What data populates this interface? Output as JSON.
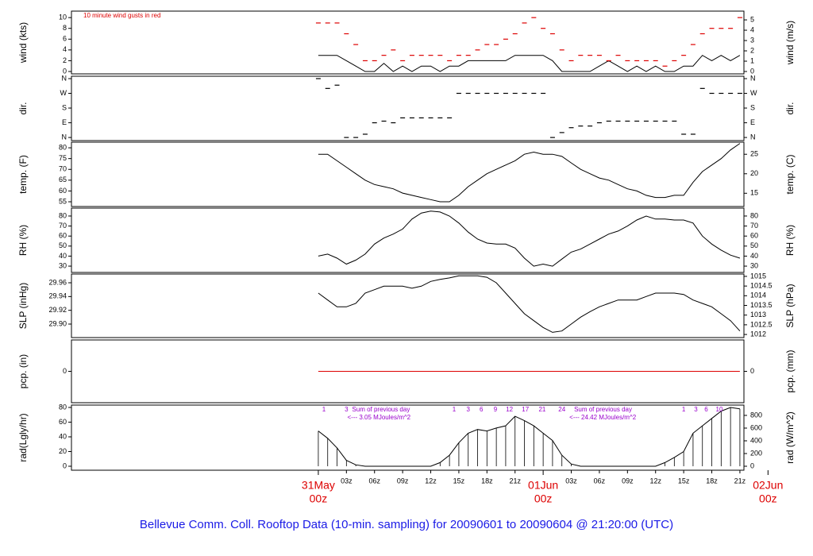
{
  "chart_data": {
    "type": "meteogram",
    "title": "Bellevue Comm. Coll. Rooftop Data (10-min. sampling) for 20090601  to  20090604 @ 21:20:00  (UTC)",
    "xlim": [
      -26.35,
      45.43
    ],
    "x": [
      0,
      1,
      2,
      3,
      4,
      5,
      6,
      7,
      8,
      9,
      10,
      11,
      12,
      13,
      14,
      15,
      16,
      17,
      18,
      19,
      20,
      21,
      22,
      23,
      24,
      25,
      26,
      27,
      28,
      29,
      30,
      31,
      32,
      33,
      34,
      35,
      36,
      37,
      38,
      39,
      40,
      41,
      42,
      43,
      44,
      45
    ],
    "xticks": [
      {
        "value": 3,
        "label": "03z"
      },
      {
        "value": 6,
        "label": "06z"
      },
      {
        "value": 9,
        "label": "09z"
      },
      {
        "value": 12,
        "label": "12z"
      },
      {
        "value": 15,
        "label": "15z"
      },
      {
        "value": 18,
        "label": "18z"
      },
      {
        "value": 21,
        "label": "21z"
      },
      {
        "value": 27,
        "label": "03z"
      },
      {
        "value": 30,
        "label": "06z"
      },
      {
        "value": 33,
        "label": "09z"
      },
      {
        "value": 36,
        "label": "12z"
      },
      {
        "value": 39,
        "label": "15z"
      },
      {
        "value": 42,
        "label": "18z"
      },
      {
        "value": 45,
        "label": "21z"
      }
    ],
    "day_ticks": [
      {
        "value": 0,
        "label": "31May",
        "sublabel": "00z"
      },
      {
        "value": 24,
        "label": "01Jun",
        "sublabel": "00z"
      },
      {
        "value": 48,
        "label": "02Jun",
        "sublabel": "00z"
      }
    ],
    "panels": [
      {
        "type": "line",
        "ylabel": "wind (kts)",
        "y2label": "wind (m/s)",
        "annotation": "10  minute wind gusts in red",
        "ylim": [
          -0.44,
          11.2
        ],
        "yticks": [
          0,
          2,
          4,
          6,
          8,
          10
        ],
        "y2lim": [
          -0.23,
          5.85
        ],
        "y2ticks": [
          0,
          1,
          2,
          3,
          4,
          5
        ],
        "series": [
          {
            "color": "#000000",
            "style": "line",
            "values": [
              3,
              3,
              3,
              2,
              1,
              0,
              0,
              1.5,
              0,
              1,
              0,
              1,
              1,
              0,
              1,
              1,
              2,
              2,
              2,
              2,
              2,
              3,
              3,
              3,
              3,
              2,
              0,
              0,
              0,
              0,
              1,
              2,
              1,
              0,
              1,
              0,
              1,
              0,
              0,
              1,
              1,
              3,
              2,
              3,
              2,
              3
            ]
          },
          {
            "color": "#dd0000",
            "style": "dash",
            "values": [
              9,
              9,
              9,
              7,
              5,
              2,
              2,
              3,
              4,
              2,
              3,
              3,
              3,
              3,
              2,
              3,
              3,
              4,
              5,
              5,
              6,
              7,
              9,
              10,
              8,
              7,
              4,
              2,
              3,
              3,
              3,
              2,
              3,
              2,
              2,
              2,
              2,
              1,
              2,
              3,
              5,
              7,
              8,
              8,
              8,
              10
            ]
          }
        ]
      },
      {
        "type": "dash",
        "ylabel": "dir.",
        "y2label": "dir.",
        "ylim": [
          -19,
          374.5
        ],
        "yticks": [
          {
            "value": 0,
            "label": "N"
          },
          {
            "value": 90,
            "label": "E"
          },
          {
            "value": 180,
            "label": "S"
          },
          {
            "value": 270,
            "label": "W"
          },
          {
            "value": 360,
            "label": "N"
          }
        ],
        "y2lim": [
          -19,
          374.5
        ],
        "y2ticks": [
          {
            "value": 0,
            "label": "N"
          },
          {
            "value": 90,
            "label": "E"
          },
          {
            "value": 180,
            "label": "S"
          },
          {
            "value": 270,
            "label": "W"
          },
          {
            "value": 360,
            "label": "N"
          }
        ],
        "series": [
          {
            "color": "#000000",
            "style": "dash",
            "values": [
              360,
              300,
              320,
              0,
              0,
              20,
              90,
              100,
              90,
              120,
              120,
              120,
              120,
              120,
              120,
              270,
              270,
              270,
              270,
              270,
              270,
              270,
              270,
              270,
              270,
              0,
              30,
              60,
              70,
              70,
              90,
              100,
              100,
              100,
              100,
              100,
              100,
              100,
              100,
              20,
              20,
              300,
              270,
              270,
              270,
              270
            ]
          }
        ]
      },
      {
        "type": "line",
        "ylabel": "temp. (F)",
        "y2label": "temp. (C)",
        "ylim": [
          52.8,
          82.6
        ],
        "yticks": [
          55,
          60,
          65,
          70,
          75,
          80
        ],
        "y2lim": [
          11.6,
          28.1
        ],
        "y2ticks": [
          15,
          20,
          25
        ],
        "series": [
          {
            "color": "#000000",
            "style": "line",
            "values": [
              77,
              77,
              74,
              71,
              68,
              65,
              63,
              62,
              61,
              59,
              58,
              57,
              56,
              55,
              55,
              58,
              62,
              65,
              68,
              70,
              72,
              74,
              77,
              78,
              77,
              77,
              76,
              73,
              70,
              68,
              66,
              65,
              63,
              61,
              60,
              58,
              57,
              57,
              58,
              58,
              64,
              69,
              72,
              75,
              79,
              82
            ]
          }
        ]
      },
      {
        "type": "line",
        "ylabel": "RH (%)",
        "y2label": "RH (%)",
        "ylim": [
          23.7,
          87.9
        ],
        "yticks": [
          30,
          40,
          50,
          60,
          70,
          80
        ],
        "y2lim": [
          23.7,
          87.9
        ],
        "y2ticks": [
          30,
          40,
          50,
          60,
          70,
          80
        ],
        "series": [
          {
            "color": "#000000",
            "style": "line",
            "values": [
              40,
              42,
              38,
              32,
              36,
              42,
              52,
              58,
              62,
              67,
              77,
              83,
              85,
              84,
              80,
              73,
              64,
              57,
              53,
              52,
              52,
              48,
              38,
              30,
              32,
              30,
              37,
              44,
              47,
              52,
              57,
              62,
              65,
              70,
              76,
              80,
              77,
              77,
              76,
              76,
              73,
              60,
              52,
              46,
              41,
              38
            ]
          }
        ]
      },
      {
        "type": "line",
        "ylabel": "SLP (inHg)",
        "y2label": "SLP (hPa)",
        "ylim": [
          29.8804,
          29.9727
        ],
        "yticks": [
          {
            "value": 29.9,
            "label": "29.90"
          },
          29.92,
          29.94,
          29.96
        ],
        "y2lim": [
          1011.84,
          1015.12
        ],
        "y2ticks": [
          1012,
          1012.5,
          1013,
          1013.5,
          1014,
          1014.5,
          1015
        ],
        "series": [
          {
            "color": "#000000",
            "style": "line",
            "values": [
              29.945,
              29.935,
              29.925,
              29.925,
              29.93,
              29.945,
              29.95,
              29.955,
              29.955,
              29.955,
              29.952,
              29.955,
              29.962,
              29.965,
              29.967,
              29.97,
              29.97,
              29.97,
              29.968,
              29.96,
              29.945,
              29.93,
              29.915,
              29.905,
              29.895,
              29.888,
              29.89,
              29.9,
              29.91,
              29.918,
              29.925,
              29.93,
              29.935,
              29.935,
              29.935,
              29.94,
              29.945,
              29.945,
              29.945,
              29.943,
              29.935,
              29.93,
              29.925,
              29.915,
              29.905,
              29.89
            ]
          }
        ]
      },
      {
        "type": "line",
        "ylabel": "pcp. (in)",
        "y2label": "pcp. (mm)",
        "ylim": [
          -1,
          1
        ],
        "yticks": [
          0
        ],
        "y2lim": [
          -1,
          1
        ],
        "y2ticks": [
          0
        ],
        "series": [
          {
            "color": "#dd0000",
            "style": "line",
            "values": [
              0,
              0,
              0,
              0,
              0,
              0,
              0,
              0,
              0,
              0,
              0,
              0,
              0,
              0,
              0,
              0,
              0,
              0,
              0,
              0,
              0,
              0,
              0,
              0,
              0,
              0,
              0,
              0,
              0,
              0,
              0,
              0,
              0,
              0,
              0,
              0,
              0,
              0,
              0,
              0,
              0,
              0,
              0,
              0,
              0,
              0
            ]
          }
        ]
      },
      {
        "type": "stick",
        "ylabel": "rad(Lgly/hr)",
        "y2label": "rad (W/m^2)",
        "ylim": [
          -5.4,
          83.2
        ],
        "yticks": [
          0,
          20,
          40,
          60,
          80
        ],
        "y2lim": [
          -62.5,
          962
        ],
        "y2ticks": [
          0,
          200,
          400,
          600,
          800
        ],
        "series": [
          {
            "color": "#000000",
            "style": "stick",
            "values": [
              48,
              38,
              25,
              8,
              2,
              0,
              0,
              0,
              0,
              0,
              0,
              0,
              0,
              5,
              15,
              32,
              45,
              50,
              48,
              52,
              55,
              68,
              62,
              55,
              45,
              35,
              15,
              3,
              0,
              0,
              0,
              0,
              0,
              0,
              0,
              0,
              0,
              5,
              12,
              20,
              45,
              55,
              65,
              75,
              80,
              78
            ]
          }
        ],
        "hour_labels": [
          {
            "x": 0.6,
            "text": "1"
          },
          {
            "x": 3,
            "text": "3"
          },
          {
            "x": 14.5,
            "text": "1"
          },
          {
            "x": 16,
            "text": "3"
          },
          {
            "x": 17.4,
            "text": "6"
          },
          {
            "x": 18.9,
            "text": "9"
          },
          {
            "x": 20.4,
            "text": "12"
          },
          {
            "x": 22.1,
            "text": "17"
          },
          {
            "x": 23.9,
            "text": "21"
          },
          {
            "x": 26,
            "text": "24"
          },
          {
            "x": 39,
            "text": "1"
          },
          {
            "x": 40.3,
            "text": "3"
          },
          {
            "x": 41.4,
            "text": "6"
          },
          {
            "x": 42.8,
            "text": "10"
          }
        ],
        "sums": [
          {
            "x": 3.6,
            "text": "Sum of previous day",
            "arrow_x": 3.1,
            "total": "<--- 3.05 MJoules/m^2"
          },
          {
            "x": 27.3,
            "text": "Sum of previous day",
            "arrow_x": 26.8,
            "total": "<--- 24.42 MJoules/m^2"
          }
        ]
      }
    ]
  }
}
